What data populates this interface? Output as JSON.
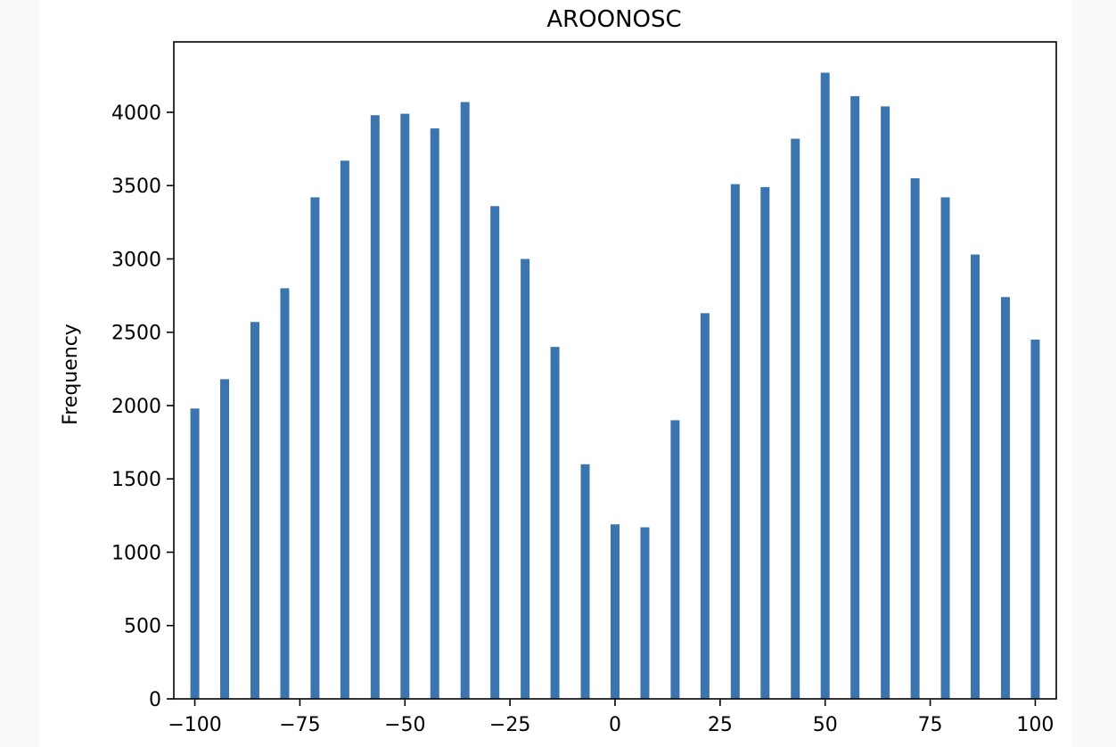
{
  "chart_data": {
    "type": "bar",
    "title": "AROONOSC",
    "xlabel": "",
    "ylabel": "Frequency",
    "xlim": [
      -105,
      105
    ],
    "ylim": [
      0,
      4480
    ],
    "x_ticks": [
      -100,
      -75,
      -50,
      -25,
      0,
      25,
      50,
      75,
      100
    ],
    "x_tick_labels": [
      "−100",
      "−75",
      "−50",
      "−25",
      "0",
      "25",
      "50",
      "75",
      "100"
    ],
    "y_ticks": [
      0,
      500,
      1000,
      1500,
      2000,
      2500,
      3000,
      3500,
      4000
    ],
    "y_tick_labels": [
      "0",
      "500",
      "1000",
      "1500",
      "2000",
      "2500",
      "3000",
      "3500",
      "4000"
    ],
    "grid": false,
    "bar_color": "#3b75af",
    "series": [
      {
        "x": [
          -100,
          -92.9,
          -85.7,
          -78.6,
          -71.4,
          -64.3,
          -57.1,
          -50,
          -42.9,
          -35.7,
          -28.6,
          -21.4,
          -14.3,
          -7.1,
          0,
          7.1,
          14.3,
          21.4,
          28.6,
          35.7,
          42.9,
          50,
          57.1,
          64.3,
          71.4,
          78.6,
          85.7,
          92.9,
          100
        ],
        "values": [
          1980,
          2180,
          2570,
          2800,
          3420,
          3670,
          3980,
          3990,
          3890,
          4070,
          3360,
          3000,
          2400,
          1600,
          1190,
          1170,
          1900,
          2630,
          3510,
          3490,
          3820,
          4270,
          4110,
          4040,
          3550,
          3420,
          3030,
          2740,
          2450
        ]
      }
    ]
  }
}
